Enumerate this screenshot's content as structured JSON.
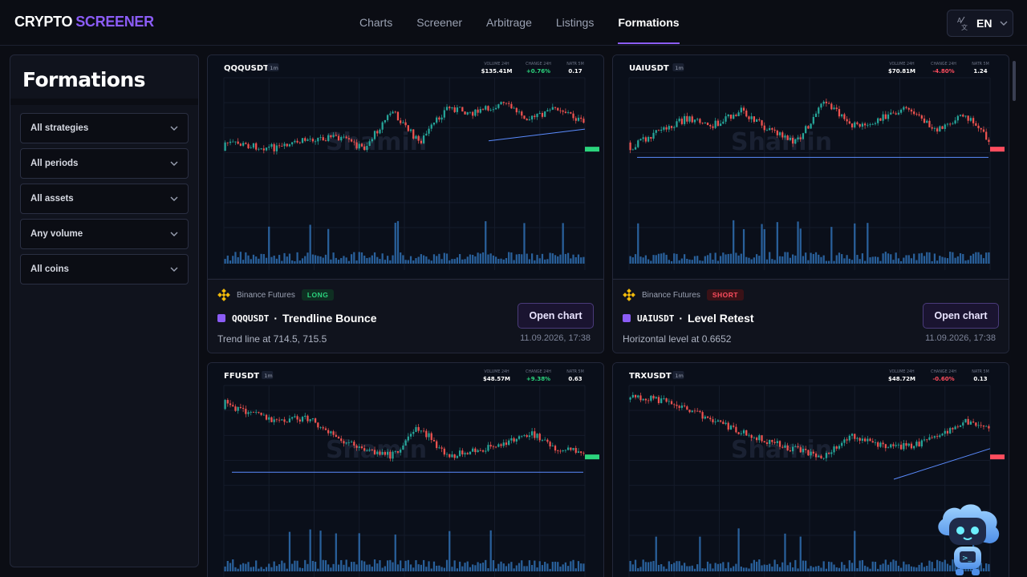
{
  "brand": {
    "part1": "CRYPTO",
    "part2": "SCREENER"
  },
  "nav": [
    {
      "label": "Charts",
      "active": false
    },
    {
      "label": "Screener",
      "active": false
    },
    {
      "label": "Arbitrage",
      "active": false
    },
    {
      "label": "Listings",
      "active": false
    },
    {
      "label": "Formations",
      "active": true
    }
  ],
  "language": {
    "icon": "translate-icon",
    "code": "EN"
  },
  "sidebar": {
    "title": "Formations",
    "filters": [
      {
        "value": "All strategies"
      },
      {
        "value": "All periods"
      },
      {
        "value": "All assets"
      },
      {
        "value": "Any volume"
      },
      {
        "value": "All coins"
      }
    ]
  },
  "watermark": "Shamin",
  "cards": [
    {
      "symbol": "QQQUSDT",
      "interval": "1m",
      "volume_label": "VOLUME 24H",
      "volume": "$135.41M",
      "change_label": "CHANGE 24H",
      "change": "+0.76%",
      "change_color": "#2bd47d",
      "natr_label": "NATR 5M",
      "natr": "0.17",
      "exchange": "Binance Futures",
      "side": "LONG",
      "pattern": "Trendline Bounce",
      "description": "Trend line at 714.5, 715.5",
      "datetime": "11.09.2026, 17:38",
      "button": "Open chart"
    },
    {
      "symbol": "UAIUSDT",
      "interval": "1m",
      "volume_label": "VOLUME 24H",
      "volume": "$70.81M",
      "change_label": "CHANGE 24H",
      "change": "-4.80%",
      "change_color": "#ff4d5e",
      "natr_label": "NATR 5M",
      "natr": "1.24",
      "exchange": "Binance Futures",
      "side": "SHORT",
      "pattern": "Level Retest",
      "description": "Horizontal level at 0.6652",
      "datetime": "11.09.2026, 17:38",
      "button": "Open chart"
    },
    {
      "symbol": "FFUSDT",
      "interval": "1m",
      "volume_label": "VOLUME 24H",
      "volume": "$48.57M",
      "change_label": "CHANGE 24H",
      "change": "+9.38%",
      "change_color": "#2bd47d",
      "natr_label": "NATR 5M",
      "natr": "0.63"
    },
    {
      "symbol": "TRXUSDT",
      "interval": "1m",
      "volume_label": "VOLUME 24H",
      "volume": "$48.72M",
      "change_label": "CHANGE 24H",
      "change": "-0.60%",
      "change_color": "#ff4d5e",
      "natr_label": "NATR 5M",
      "natr": "0.13"
    }
  ]
}
